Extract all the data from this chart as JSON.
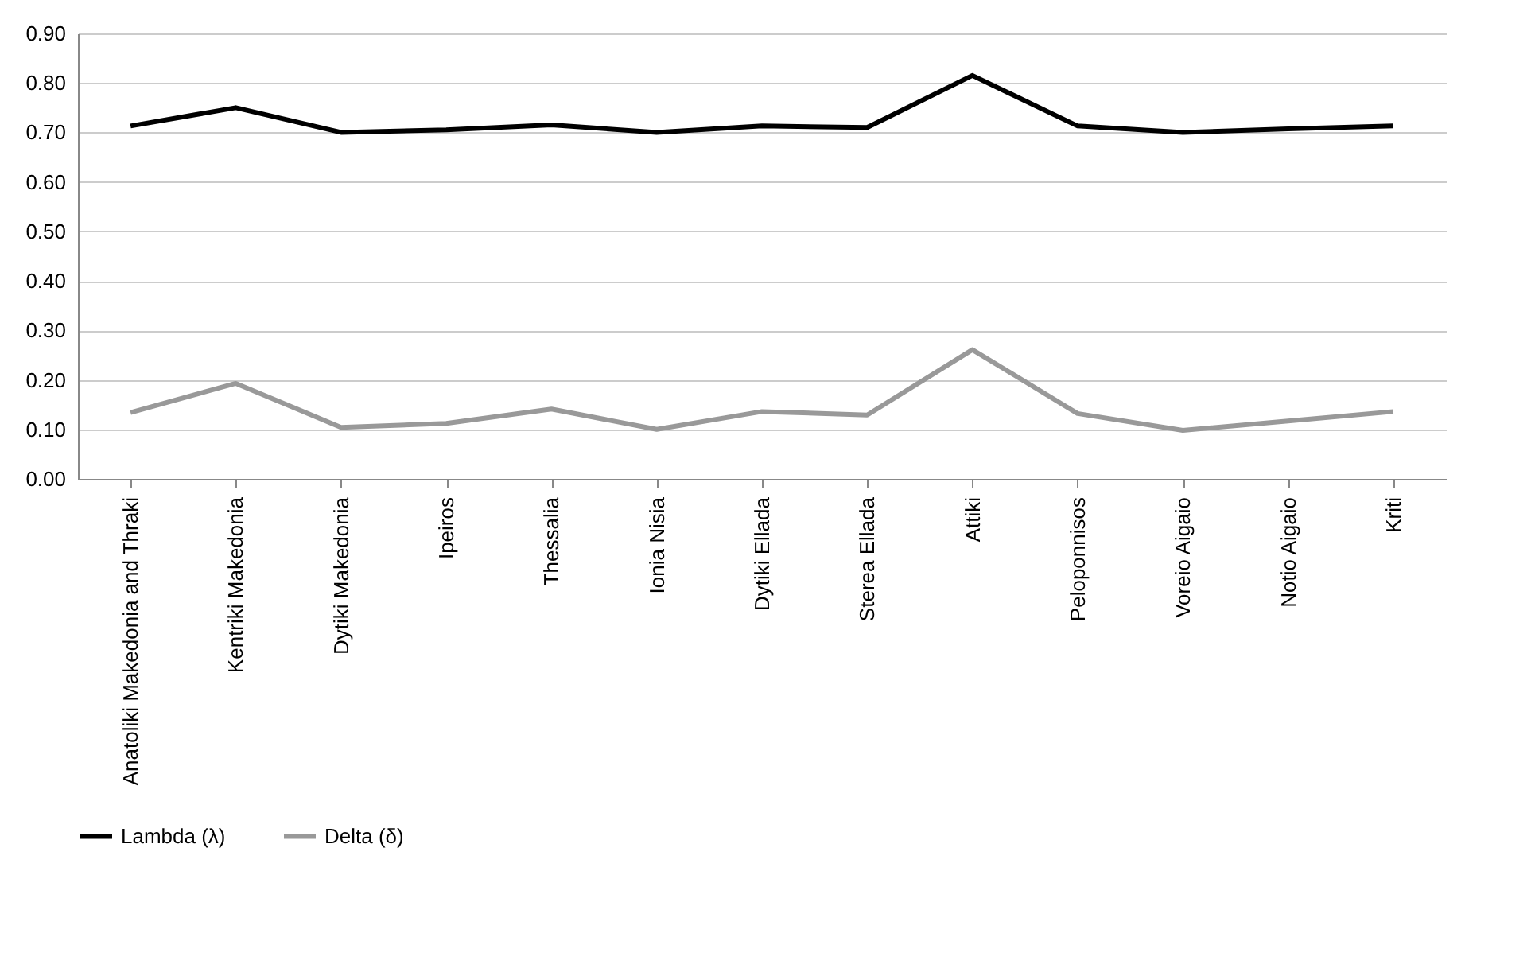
{
  "chart_data": {
    "type": "line",
    "categories": [
      "Anatoliki Makedonia and Thraki",
      "Kentriki Makedonia",
      "Dytiki Makedonia",
      "Ipeiros",
      "Thessalia",
      "Ionia Nisia",
      "Dytiki Ellada",
      "Sterea Ellada",
      "Attiki",
      "Peloponnisos",
      "Voreio Aigaio",
      "Notio Aigaio",
      "Kriti"
    ],
    "series": [
      {
        "name": "Lambda (λ)",
        "color": "#000000",
        "values": [
          0.713,
          0.75,
          0.7,
          0.705,
          0.715,
          0.7,
          0.713,
          0.71,
          0.815,
          0.713,
          0.7,
          0.707,
          0.713
        ]
      },
      {
        "name": "Delta (δ)",
        "color": "#999999",
        "values": [
          0.134,
          0.193,
          0.104,
          0.112,
          0.141,
          0.1,
          0.136,
          0.129,
          0.261,
          0.132,
          0.098,
          0.117,
          0.136
        ]
      }
    ],
    "ylim": [
      0,
      0.9
    ],
    "yticks": [
      {
        "value": 0,
        "label": "0.00"
      },
      {
        "value": 0.1,
        "label": "0.10"
      },
      {
        "value": 0.2,
        "label": "0.20"
      },
      {
        "value": 0.3,
        "label": "0.30"
      },
      {
        "value": 0.4,
        "label": "0.40"
      },
      {
        "value": 0.5,
        "label": "0.50"
      },
      {
        "value": 0.6,
        "label": "0.60"
      },
      {
        "value": 0.7,
        "label": "0.70"
      },
      {
        "value": 0.8,
        "label": "0.80"
      },
      {
        "value": 0.9,
        "label": "0.90"
      }
    ],
    "grid": "y",
    "legend": "bottom",
    "marker": "none",
    "line_style": "solid"
  }
}
